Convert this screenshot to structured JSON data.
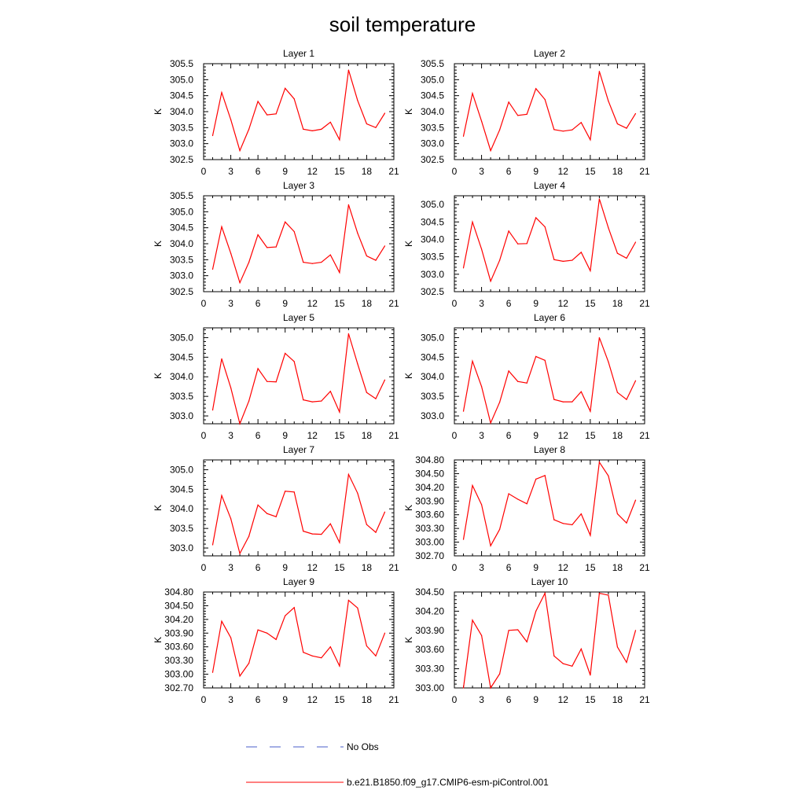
{
  "title": "soil temperature",
  "legend": {
    "items": [
      {
        "label": "No Obs",
        "color": "#4a5cc8",
        "style": "dashed"
      },
      {
        "label": "b.e21.B1850.f09_g17.CMIP6-esm-piControl.001",
        "color": "#ff0000",
        "style": "solid"
      }
    ]
  },
  "chart_data": [
    {
      "type": "line",
      "title": "Layer 1",
      "ylabel": "K",
      "x": [
        1,
        2,
        3,
        4,
        5,
        6,
        7,
        8,
        9,
        10,
        11,
        12,
        13,
        14,
        15,
        16,
        17,
        18,
        19,
        20
      ],
      "xlim": [
        0,
        21
      ],
      "xticks": [
        0,
        3,
        6,
        9,
        12,
        15,
        18,
        21
      ],
      "ylim": [
        302.5,
        305.5
      ],
      "yticks": [
        "302.5",
        "303.0",
        "303.5",
        "304.0",
        "304.5",
        "305.0",
        "305.5"
      ],
      "series": [
        {
          "name": "b.e21.B1850.f09_g17.CMIP6-esm-piControl.001",
          "color": "#ff0000",
          "values": [
            303.25,
            304.6,
            303.75,
            302.78,
            303.45,
            304.32,
            303.9,
            303.93,
            304.73,
            304.4,
            303.45,
            303.4,
            303.45,
            303.67,
            303.12,
            305.3,
            304.35,
            303.62,
            303.5,
            303.95
          ]
        }
      ]
    },
    {
      "type": "line",
      "title": "Layer 2",
      "ylabel": "K",
      "x": [
        1,
        2,
        3,
        4,
        5,
        6,
        7,
        8,
        9,
        10,
        11,
        12,
        13,
        14,
        15,
        16,
        17,
        18,
        19,
        20
      ],
      "xlim": [
        0,
        21
      ],
      "xticks": [
        0,
        3,
        6,
        9,
        12,
        15,
        18,
        21
      ],
      "ylim": [
        302.5,
        305.5
      ],
      "yticks": [
        "302.5",
        "303.0",
        "303.5",
        "304.0",
        "304.5",
        "305.0",
        "305.5"
      ],
      "series": [
        {
          "name": "b.e21.B1850.f09_g17.CMIP6-esm-piControl.001",
          "color": "#ff0000",
          "values": [
            303.23,
            304.57,
            303.7,
            302.78,
            303.43,
            304.3,
            303.88,
            303.92,
            304.72,
            304.38,
            303.44,
            303.39,
            303.43,
            303.66,
            303.12,
            305.26,
            304.33,
            303.62,
            303.48,
            303.94
          ]
        }
      ]
    },
    {
      "type": "line",
      "title": "Layer 3",
      "ylabel": "K",
      "x": [
        1,
        2,
        3,
        4,
        5,
        6,
        7,
        8,
        9,
        10,
        11,
        12,
        13,
        14,
        15,
        16,
        17,
        18,
        19,
        20
      ],
      "xlim": [
        0,
        21
      ],
      "xticks": [
        0,
        3,
        6,
        9,
        12,
        15,
        18,
        21
      ],
      "ylim": [
        302.5,
        305.5
      ],
      "yticks": [
        "302.5",
        "303.0",
        "303.5",
        "304.0",
        "304.5",
        "305.0",
        "305.5"
      ],
      "series": [
        {
          "name": "b.e21.B1850.f09_g17.CMIP6-esm-piControl.001",
          "color": "#ff0000",
          "values": [
            303.2,
            304.53,
            303.7,
            302.78,
            303.42,
            304.28,
            303.88,
            303.9,
            304.68,
            304.38,
            303.42,
            303.38,
            303.42,
            303.65,
            303.1,
            305.22,
            304.33,
            303.62,
            303.48,
            303.93
          ]
        }
      ]
    },
    {
      "type": "line",
      "title": "Layer 4",
      "ylabel": "K",
      "x": [
        1,
        2,
        3,
        4,
        5,
        6,
        7,
        8,
        9,
        10,
        11,
        12,
        13,
        14,
        15,
        16,
        17,
        18,
        19,
        20
      ],
      "xlim": [
        0,
        21
      ],
      "xticks": [
        0,
        3,
        6,
        9,
        12,
        15,
        18,
        21
      ],
      "ylim": [
        302.5,
        305.25
      ],
      "yticks": [
        "302.5",
        "303.0",
        "303.5",
        "304.0",
        "304.5",
        "305.0"
      ],
      "series": [
        {
          "name": "b.e21.B1850.f09_g17.CMIP6-esm-piControl.001",
          "color": "#ff0000",
          "values": [
            303.18,
            304.5,
            303.72,
            302.8,
            303.4,
            304.24,
            303.87,
            303.88,
            304.62,
            304.36,
            303.42,
            303.37,
            303.4,
            303.63,
            303.1,
            305.16,
            304.33,
            303.6,
            303.46,
            303.92
          ]
        }
      ]
    },
    {
      "type": "line",
      "title": "Layer 5",
      "ylabel": "K",
      "x": [
        1,
        2,
        3,
        4,
        5,
        6,
        7,
        8,
        9,
        10,
        11,
        12,
        13,
        14,
        15,
        16,
        17,
        18,
        19,
        20
      ],
      "xlim": [
        0,
        21
      ],
      "xticks": [
        0,
        3,
        6,
        9,
        12,
        15,
        18,
        21
      ],
      "ylim": [
        302.8,
        305.25
      ],
      "yticks": [
        "303.0",
        "303.5",
        "304.0",
        "304.5",
        "305.0"
      ],
      "series": [
        {
          "name": "b.e21.B1850.f09_g17.CMIP6-esm-piControl.001",
          "color": "#ff0000",
          "values": [
            303.15,
            304.46,
            303.72,
            302.8,
            303.38,
            304.21,
            303.88,
            303.87,
            304.6,
            304.39,
            303.41,
            303.36,
            303.38,
            303.63,
            303.1,
            305.1,
            304.33,
            303.6,
            303.44,
            303.92
          ]
        }
      ]
    },
    {
      "type": "line",
      "title": "Layer 6",
      "ylabel": "K",
      "x": [
        1,
        2,
        3,
        4,
        5,
        6,
        7,
        8,
        9,
        10,
        11,
        12,
        13,
        14,
        15,
        16,
        17,
        18,
        19,
        20
      ],
      "xlim": [
        0,
        21
      ],
      "xticks": [
        0,
        3,
        6,
        9,
        12,
        15,
        18,
        21
      ],
      "ylim": [
        302.8,
        305.25
      ],
      "yticks": [
        "303.0",
        "303.5",
        "304.0",
        "304.5",
        "305.0"
      ],
      "series": [
        {
          "name": "b.e21.B1850.f09_g17.CMIP6-esm-piControl.001",
          "color": "#ff0000",
          "values": [
            303.12,
            304.4,
            303.75,
            302.82,
            303.35,
            304.15,
            303.88,
            303.84,
            304.52,
            304.42,
            303.42,
            303.36,
            303.36,
            303.62,
            303.12,
            305.0,
            304.38,
            303.6,
            303.42,
            303.9
          ]
        }
      ]
    },
    {
      "type": "line",
      "title": "Layer 7",
      "ylabel": "K",
      "x": [
        1,
        2,
        3,
        4,
        5,
        6,
        7,
        8,
        9,
        10,
        11,
        12,
        13,
        14,
        15,
        16,
        17,
        18,
        19,
        20
      ],
      "xlim": [
        0,
        21
      ],
      "xticks": [
        0,
        3,
        6,
        9,
        12,
        15,
        18,
        21
      ],
      "ylim": [
        302.8,
        305.25
      ],
      "yticks": [
        "303.0",
        "303.5",
        "304.0",
        "304.5",
        "305.0"
      ],
      "series": [
        {
          "name": "b.e21.B1850.f09_g17.CMIP6-esm-piControl.001",
          "color": "#ff0000",
          "values": [
            303.08,
            304.34,
            303.75,
            302.86,
            303.3,
            304.1,
            303.88,
            303.8,
            304.45,
            304.43,
            303.43,
            303.36,
            303.35,
            303.62,
            303.14,
            304.88,
            304.4,
            303.6,
            303.4,
            303.92
          ]
        }
      ]
    },
    {
      "type": "line",
      "title": "Layer 8",
      "ylabel": "K",
      "x": [
        1,
        2,
        3,
        4,
        5,
        6,
        7,
        8,
        9,
        10,
        11,
        12,
        13,
        14,
        15,
        16,
        17,
        18,
        19,
        20
      ],
      "xlim": [
        0,
        21
      ],
      "xticks": [
        0,
        3,
        6,
        9,
        12,
        15,
        18,
        21
      ],
      "ylim": [
        302.7,
        304.8
      ],
      "yticks": [
        "302.70",
        "303.00",
        "303.30",
        "303.60",
        "303.90",
        "304.20",
        "304.50",
        "304.80"
      ],
      "series": [
        {
          "name": "b.e21.B1850.f09_g17.CMIP6-esm-piControl.001",
          "color": "#ff0000",
          "values": [
            303.06,
            304.24,
            303.82,
            302.92,
            303.28,
            304.06,
            303.94,
            303.84,
            304.38,
            304.46,
            303.49,
            303.41,
            303.38,
            303.62,
            303.15,
            304.75,
            304.45,
            303.62,
            303.42,
            303.92
          ]
        }
      ]
    },
    {
      "type": "line",
      "title": "Layer 9",
      "ylabel": "K",
      "x": [
        1,
        2,
        3,
        4,
        5,
        6,
        7,
        8,
        9,
        10,
        11,
        12,
        13,
        14,
        15,
        16,
        17,
        18,
        19,
        20
      ],
      "xlim": [
        0,
        21
      ],
      "xticks": [
        0,
        3,
        6,
        9,
        12,
        15,
        18,
        21
      ],
      "ylim": [
        302.7,
        304.8
      ],
      "yticks": [
        "302.70",
        "303.00",
        "303.30",
        "303.60",
        "303.90",
        "304.20",
        "304.50",
        "304.80"
      ],
      "series": [
        {
          "name": "b.e21.B1850.f09_g17.CMIP6-esm-piControl.001",
          "color": "#ff0000",
          "values": [
            303.04,
            304.16,
            303.8,
            302.96,
            303.24,
            303.97,
            303.9,
            303.76,
            304.28,
            304.46,
            303.48,
            303.4,
            303.36,
            303.6,
            303.18,
            304.62,
            304.45,
            303.62,
            303.4,
            303.9
          ]
        }
      ]
    },
    {
      "type": "line",
      "title": "Layer 10",
      "ylabel": "K",
      "x": [
        1,
        2,
        3,
        4,
        5,
        6,
        7,
        8,
        9,
        10,
        11,
        12,
        13,
        14,
        15,
        16,
        17,
        18,
        19,
        20
      ],
      "xlim": [
        0,
        21
      ],
      "xticks": [
        0,
        3,
        6,
        9,
        12,
        15,
        18,
        21
      ],
      "ylim": [
        303.0,
        304.5
      ],
      "yticks": [
        "303.00",
        "303.30",
        "303.60",
        "303.90",
        "304.20",
        "304.50"
      ],
      "series": [
        {
          "name": "b.e21.B1850.f09_g17.CMIP6-esm-piControl.001",
          "color": "#ff0000",
          "values": [
            303.0,
            304.06,
            303.82,
            303.0,
            303.22,
            303.9,
            303.91,
            303.72,
            304.2,
            304.48,
            303.5,
            303.38,
            303.34,
            303.61,
            303.2,
            304.48,
            304.45,
            303.64,
            303.4,
            303.9
          ]
        }
      ]
    }
  ]
}
